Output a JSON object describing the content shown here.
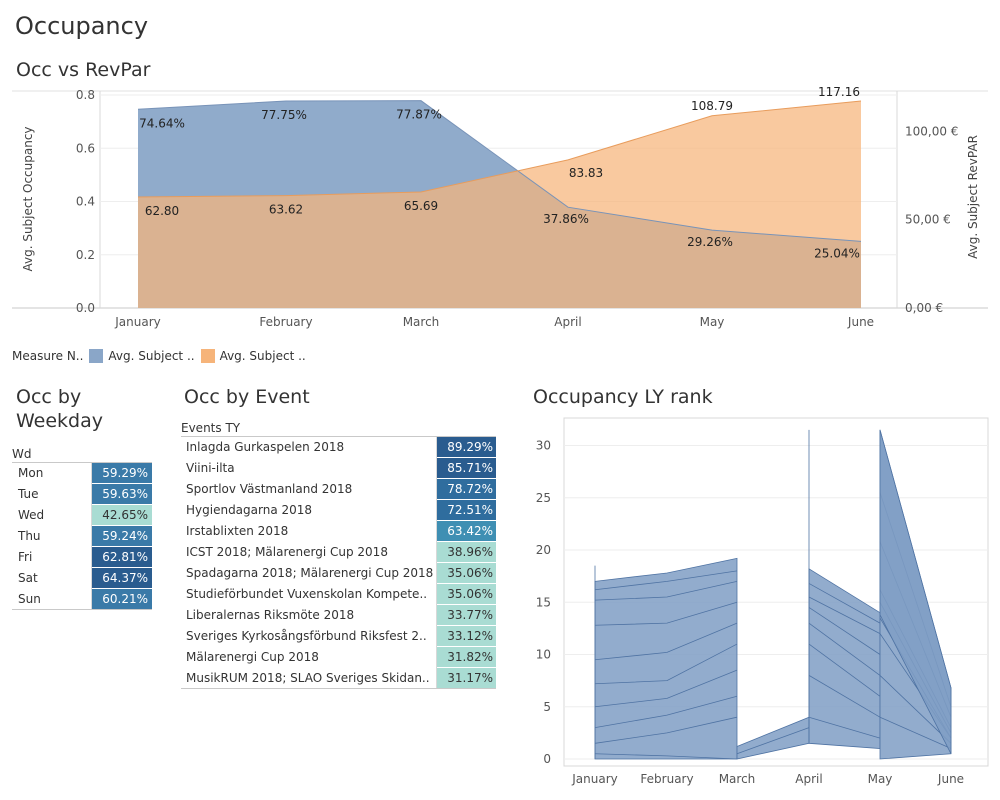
{
  "page_title": "Occupancy",
  "charts": {
    "occ_vs_revpar_title": "Occ vs RevPar",
    "weekday_title_line1": "Occ by",
    "weekday_title_line2": "Weekday",
    "event_title": "Occ by Event",
    "rank_title": "Occupancy LY rank"
  },
  "legend": {
    "label": "Measure N..",
    "items": [
      {
        "label": "Avg. Subject ..",
        "color": "#8aa6c8"
      },
      {
        "label": "Avg. Subject ..",
        "color": "#f6b47a"
      }
    ]
  },
  "colors": {
    "occupancy": "#8aa6c8",
    "revpar": "#f6b47a",
    "rank_fill": "#7f9ec4",
    "rank_line": "#4f73a3",
    "heat_dark": "#2a5c8f",
    "heat_mid": "#3f8fb3",
    "heat_light": "#a9dcd3"
  },
  "chart_data": [
    {
      "type": "area",
      "title": "Occ vs RevPar",
      "categories": [
        "January",
        "February",
        "March",
        "April",
        "May",
        "June"
      ],
      "series": [
        {
          "name": "Avg. Subject Occupancy",
          "axis": "left",
          "values": [
            0.7464,
            0.7775,
            0.7787,
            0.3786,
            0.2926,
            0.2504
          ],
          "labels": [
            "74.64%",
            "77.75%",
            "77.87%",
            "37.86%",
            "29.26%",
            "25.04%"
          ]
        },
        {
          "name": "Avg. Subject RevPAR",
          "axis": "right",
          "values": [
            62.8,
            63.62,
            65.69,
            83.83,
            108.79,
            117.16
          ],
          "labels": [
            "62.80",
            "63.62",
            "65.69",
            "83.83",
            "108.79",
            "117.16"
          ]
        }
      ],
      "ylabel_left": "Avg. Subject Occupancy",
      "ylabel_right": "Avg. Subject RevPAR",
      "ylim_left": [
        0,
        0.8
      ],
      "yticks_left": [
        "0.0",
        "0.2",
        "0.4",
        "0.6",
        "0.8"
      ],
      "ylim_right": [
        0,
        120
      ],
      "yticks_right": [
        "0,00 €",
        "50,00 €",
        "100,00 €"
      ]
    },
    {
      "type": "table",
      "title": "Occ by Weekday",
      "column_header": "Wd",
      "rows": [
        {
          "label": "Mon",
          "value": "59.29%"
        },
        {
          "label": "Tue",
          "value": "59.63%"
        },
        {
          "label": "Wed",
          "value": "42.65%"
        },
        {
          "label": "Thu",
          "value": "59.24%"
        },
        {
          "label": "Fri",
          "value": "62.81%"
        },
        {
          "label": "Sat",
          "value": "64.37%"
        },
        {
          "label": "Sun",
          "value": "60.21%"
        }
      ]
    },
    {
      "type": "table",
      "title": "Occ by Event",
      "column_header": "Events TY",
      "rows": [
        {
          "label": "Inlagda Gurkaspelen 2018",
          "value": "89.29%"
        },
        {
          "label": "Viini-ilta",
          "value": "85.71%"
        },
        {
          "label": "Sportlov Västmanland 2018",
          "value": "78.72%"
        },
        {
          "label": "Hygiendagarna 2018",
          "value": "72.51%"
        },
        {
          "label": "Irstablixten 2018",
          "value": "63.42%"
        },
        {
          "label": "ICST 2018; Mälarenergi Cup 2018",
          "value": "38.96%"
        },
        {
          "label": "Spadagarna 2018; Mälarenergi Cup 2018",
          "value": "35.06%"
        },
        {
          "label": "Studieförbundet Vuxenskolan Kompete..",
          "value": "35.06%"
        },
        {
          "label": "Liberalernas Riksmöte 2018",
          "value": "33.77%"
        },
        {
          "label": "Sveriges Kyrkosångsförbund Riksfest 2..",
          "value": "33.12%"
        },
        {
          "label": "Mälarenergi Cup 2018",
          "value": "31.82%"
        },
        {
          "label": "MusikRUM 2018; SLAO Sveriges Skidan..",
          "value": "31.17%"
        }
      ]
    },
    {
      "type": "area",
      "title": "Occupancy LY rank",
      "categories": [
        "January",
        "February",
        "March",
        "April",
        "May",
        "June"
      ],
      "ylim": [
        0,
        32
      ],
      "yticks": [
        "0",
        "5",
        "10",
        "15",
        "20",
        "25",
        "30"
      ],
      "segments": [
        {
          "from": "January",
          "to": "March",
          "lower": [
            0,
            0,
            0
          ],
          "upper": [
            17,
            17.8,
            19.2
          ],
          "top_spike": 18.5,
          "lines": [
            [
              0.5,
              0.3,
              0
            ],
            [
              1.5,
              2.5,
              4
            ],
            [
              3,
              4.2,
              6
            ],
            [
              5,
              5.8,
              8.5
            ],
            [
              7.2,
              7.5,
              11
            ],
            [
              9.5,
              10.2,
              13
            ],
            [
              12.8,
              13,
              15
            ],
            [
              15.2,
              15.5,
              17
            ],
            [
              16.2,
              17,
              18
            ]
          ]
        },
        {
          "from": "March",
          "to": "April",
          "lower": [
            0,
            1.5
          ],
          "upper": [
            1.2,
            4
          ],
          "lines": [
            [
              0.5,
              3
            ]
          ]
        },
        {
          "from": "April",
          "to": "May",
          "lower": [
            1.5,
            1
          ],
          "upper": [
            18.2,
            14
          ],
          "top_spike": 31.5,
          "lines": [
            [
              4,
              2
            ],
            [
              8,
              4
            ],
            [
              11,
              6
            ],
            [
              13,
              8
            ],
            [
              14.5,
              10
            ],
            [
              15.5,
              12
            ],
            [
              16.8,
              13
            ]
          ]
        },
        {
          "from": "May",
          "to": "June",
          "lower": [
            0,
            0.5
          ],
          "upper": [
            31.5,
            6.8
          ],
          "lines": [
            [
              4,
              1
            ],
            [
              8,
              1.5
            ],
            [
              12,
              2
            ],
            [
              13.5,
              2
            ],
            [
              15,
              2.5
            ],
            [
              16.2,
              3
            ],
            [
              20.8,
              4
            ],
            [
              25.5,
              5
            ]
          ]
        }
      ]
    }
  ]
}
